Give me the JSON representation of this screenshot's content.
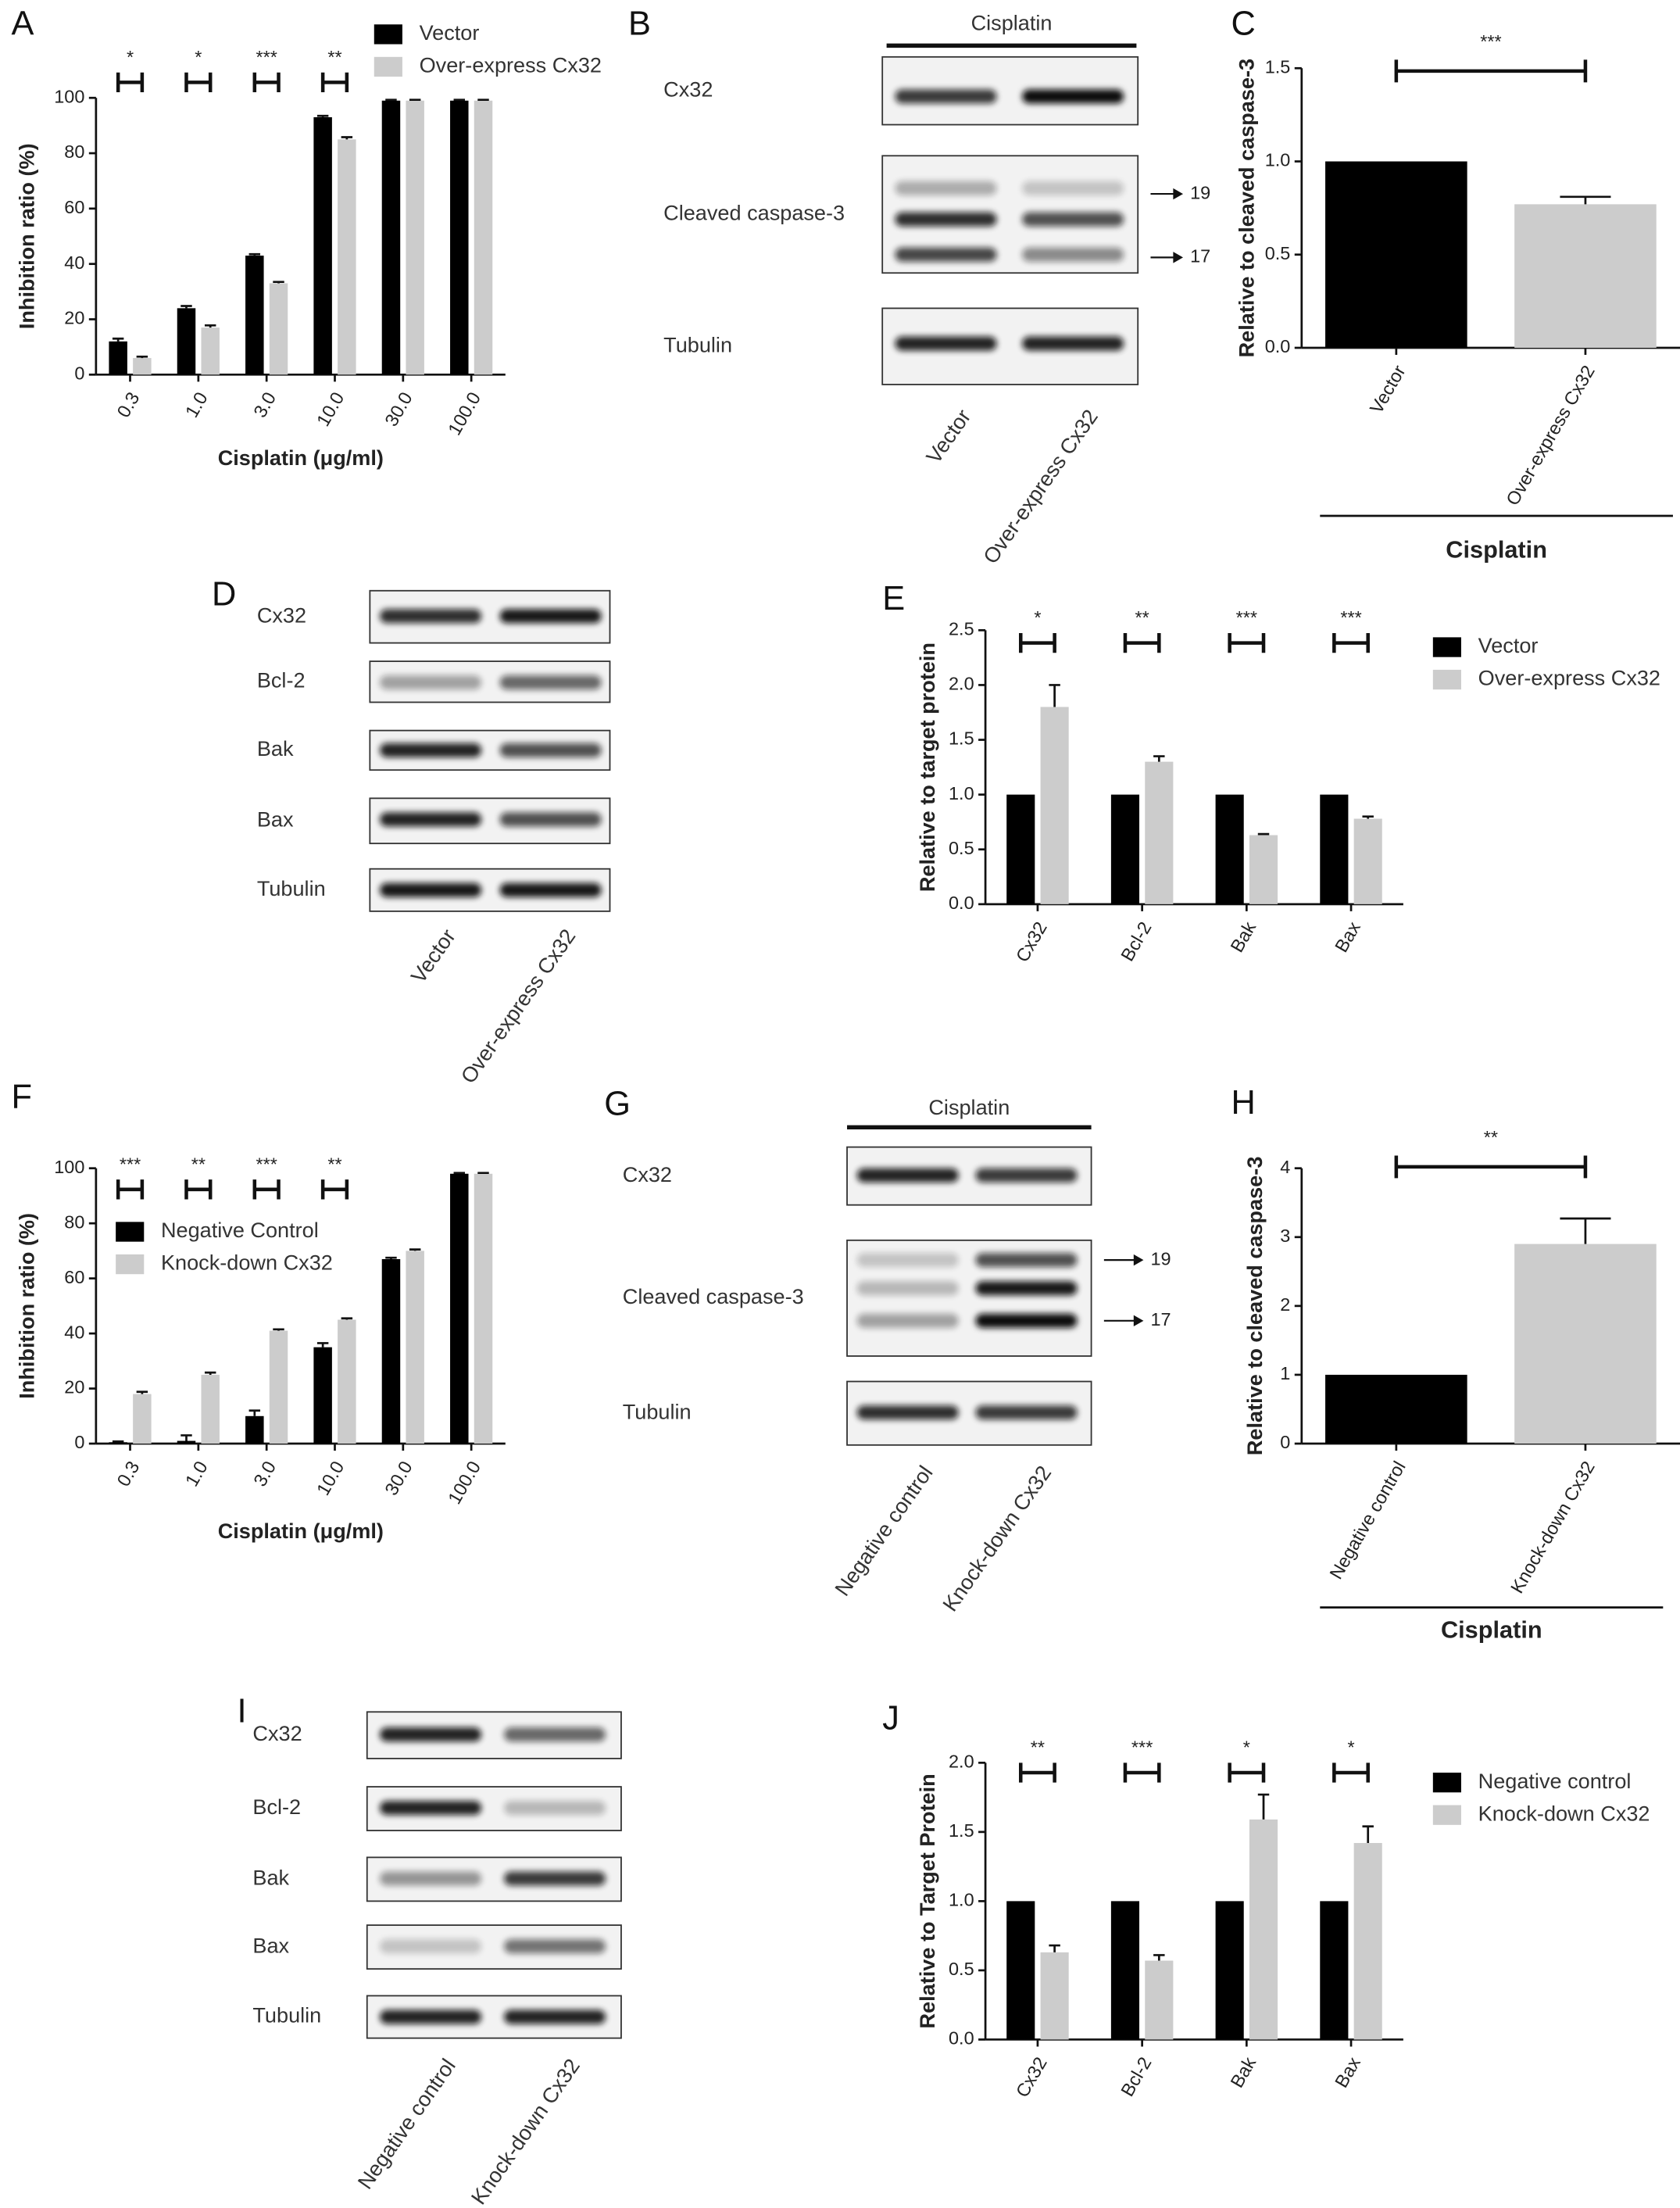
{
  "chart_data": [
    {
      "type": "bar",
      "panel": "A",
      "ylabel": "Inhibition ratio (%)",
      "xlabel": "Cisplatin (μg/ml)",
      "categories": [
        "0.3",
        "1.0",
        "3.0",
        "10.0",
        "30.0",
        "100.0"
      ],
      "series": [
        {
          "name": "Vector",
          "color": "#000000",
          "values": [
            12,
            24,
            43,
            93,
            99,
            99
          ],
          "errors": [
            1,
            0.8,
            0.5,
            0.5,
            0.3,
            0.3
          ]
        },
        {
          "name": "Over-express Cx32",
          "color": "#cccccc",
          "values": [
            6,
            17,
            33,
            85,
            99,
            99
          ],
          "errors": [
            0.5,
            0.8,
            0.5,
            0.8,
            0.3,
            0.3
          ]
        }
      ],
      "significance": [
        "*",
        "*",
        "***",
        "**",
        null,
        null
      ],
      "ylim": [
        0,
        100
      ],
      "yticks": [
        0,
        20,
        40,
        60,
        80,
        100
      ]
    },
    {
      "type": "bar",
      "panel": "C",
      "ylabel": "Relative to cleaved caspase-3",
      "group_label": "Cisplatin",
      "categories": [
        "Vector",
        "Over-express Cx32"
      ],
      "values": [
        1.0,
        0.77
      ],
      "errors": [
        null,
        0.04
      ],
      "colors": [
        "#000000",
        "#cccccc"
      ],
      "significance": "***",
      "ylim": [
        0,
        1.5
      ],
      "yticks": [
        {
          "value": 0,
          "label": "0.0"
        },
        {
          "value": 0.5,
          "label": "0.5"
        },
        {
          "value": 1,
          "label": "1.0"
        },
        {
          "value": 1.5,
          "label": "1.5"
        }
      ]
    },
    {
      "type": "bar",
      "panel": "E",
      "ylabel": "Relative to target protein",
      "categories": [
        "Cx32",
        "Bcl-2",
        "Bak",
        "Bax"
      ],
      "series": [
        {
          "name": "Vector",
          "color": "#000000",
          "values": [
            1,
            1,
            1,
            1
          ]
        },
        {
          "name": "Over-express Cx32",
          "color": "#cccccc",
          "values": [
            1.8,
            1.3,
            0.63,
            0.78
          ],
          "errors": [
            0.2,
            0.05,
            0.01,
            0.02
          ]
        }
      ],
      "significance": [
        "*",
        "**",
        "***",
        "***"
      ],
      "ylim": [
        0,
        2.5
      ],
      "yticks": [
        {
          "value": 0,
          "label": "0.0"
        },
        {
          "value": 0.5,
          "label": "0.5"
        },
        {
          "value": 1,
          "label": "1.0"
        },
        {
          "value": 1.5,
          "label": "1.5"
        },
        {
          "value": 2,
          "label": "2.0"
        },
        {
          "value": 2.5,
          "label": "2.5"
        }
      ]
    },
    {
      "type": "bar",
      "panel": "F",
      "ylabel": "Inhibition ratio (%)",
      "xlabel": "Cisplatin (μg/ml)",
      "categories": [
        "0.3",
        "1.0",
        "3.0",
        "10.0",
        "30.0",
        "100.0"
      ],
      "series": [
        {
          "name": "Negative Control",
          "color": "#000000",
          "values": [
            0.5,
            1,
            10,
            35,
            67,
            98
          ],
          "errors": [
            0.3,
            2,
            2,
            1.5,
            0.5,
            0.3
          ]
        },
        {
          "name": "Knock-down Cx32",
          "color": "#cccccc",
          "values": [
            18,
            25,
            41,
            45,
            70,
            98
          ],
          "errors": [
            0.8,
            0.8,
            0.5,
            0.5,
            0.5,
            0.3
          ]
        }
      ],
      "significance": [
        "***",
        "**",
        "***",
        "**",
        null,
        null
      ],
      "ylim": [
        0,
        100
      ],
      "yticks": [
        0,
        20,
        40,
        60,
        80,
        100
      ]
    },
    {
      "type": "bar",
      "panel": "H",
      "ylabel": "Relative to cleaved caspase-3",
      "group_label": "Cisplatin",
      "categories": [
        "Negative control",
        "Knock-down Cx32"
      ],
      "values": [
        1,
        2.9
      ],
      "errors": [
        null,
        0.37
      ],
      "colors": [
        "#000000",
        "#cccccc"
      ],
      "significance": "**",
      "ylim": [
        0,
        4
      ],
      "yticks": [
        0,
        1,
        2,
        3,
        4
      ]
    },
    {
      "type": "bar",
      "panel": "J",
      "ylabel": "Relative to Target Protein",
      "categories": [
        "Cx32",
        "Bcl-2",
        "Bak",
        "Bax"
      ],
      "series": [
        {
          "name": "Negative control",
          "color": "#000000",
          "values": [
            1,
            1,
            1,
            1
          ]
        },
        {
          "name": "Knock-down Cx32",
          "color": "#cccccc",
          "values": [
            0.63,
            0.57,
            1.59,
            1.42
          ],
          "errors": [
            0.05,
            0.04,
            0.18,
            0.12
          ]
        }
      ],
      "significance": [
        "**",
        "***",
        "*",
        "*"
      ],
      "ylim": [
        0,
        2
      ],
      "yticks": [
        {
          "value": 0,
          "label": "0.0"
        },
        {
          "value": 0.5,
          "label": "0.5"
        },
        {
          "value": 1,
          "label": "1.0"
        },
        {
          "value": 1.5,
          "label": "1.5"
        },
        {
          "value": 2,
          "label": "2.0"
        }
      ]
    }
  ],
  "blots": [
    {
      "panel": "B",
      "header": "Cisplatin",
      "rows": [
        "Cx32",
        "Cleaved caspase-3",
        "Tubulin"
      ],
      "markers": [
        "19",
        "17"
      ],
      "lanes": [
        "Vector",
        "Over-express Cx32"
      ]
    },
    {
      "panel": "D",
      "rows": [
        "Cx32",
        "Bcl-2",
        "Bak",
        "Bax",
        "Tubulin"
      ],
      "lanes": [
        "Vector",
        "Over-express Cx32"
      ]
    },
    {
      "panel": "G",
      "header": "Cisplatin",
      "rows": [
        "Cx32",
        "Cleaved caspase-3",
        "Tubulin"
      ],
      "markers": [
        "19",
        "17"
      ],
      "lanes": [
        "Negative control",
        "Knock-down Cx32"
      ]
    },
    {
      "panel": "I",
      "rows": [
        "Cx32",
        "Bcl-2",
        "Bak",
        "Bax",
        "Tubulin"
      ],
      "lanes": [
        "Negative control",
        "Knock-down Cx32"
      ]
    }
  ]
}
